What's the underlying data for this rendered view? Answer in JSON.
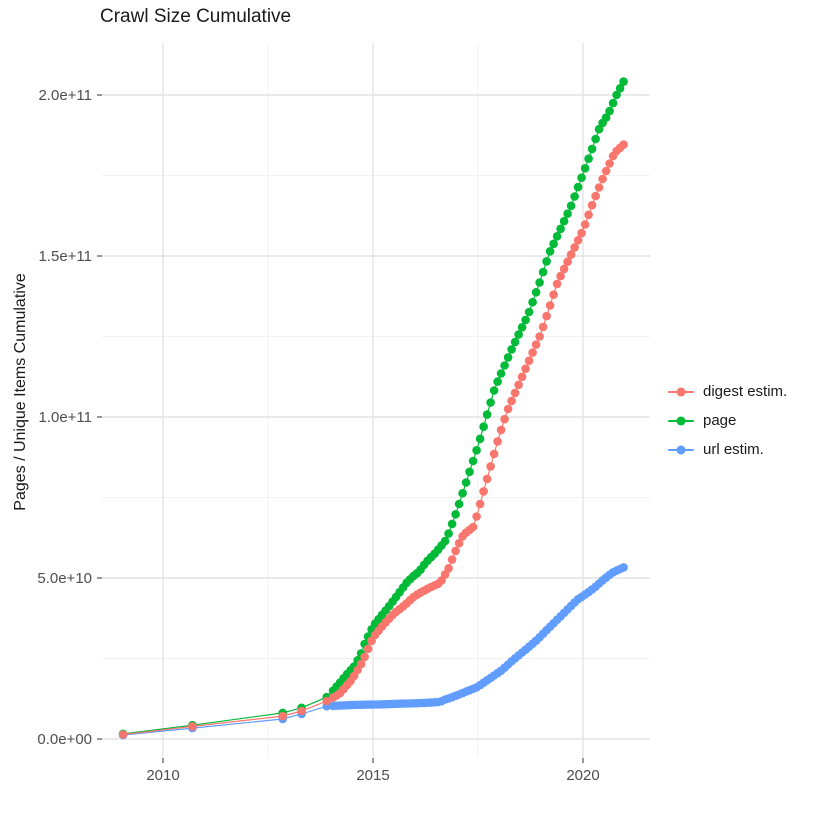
{
  "title": "Crawl Size Cumulative",
  "chart_data": {
    "type": "scatter",
    "subtype": "cumulative line + points",
    "title": "Crawl Size Cumulative",
    "xlabel": "",
    "ylabel": "Pages / Unique Items Cumulative",
    "x_tick_labels": [
      "2010",
      "2015",
      "2020"
    ],
    "x_tick_values": [
      2010,
      2015,
      2020
    ],
    "x_minor_tick_values": [
      2012.5,
      2017.5
    ],
    "y_tick_labels": [
      "0.0e+00",
      "5.0e+10",
      "1.0e+11",
      "1.5e+11",
      "2.0e+11"
    ],
    "y_tick_values_e9": [
      0,
      50,
      100,
      150,
      200
    ],
    "y_minor_values_e9": [
      25,
      75,
      125,
      175
    ],
    "xlim": [
      2008.45,
      2021.6
    ],
    "ylim_e9": [
      -10,
      216
    ],
    "value_unit": "items, stored as billions (1 = 1e9)",
    "grid": "major and minor, light gray on white",
    "legend_position": "right-center",
    "marker": "filled round point on thin line",
    "sparse_years": [
      2009.05,
      2010.7,
      2012.85,
      2013.3,
      2013.9
    ],
    "dense_range_years": [
      2014.05,
      2021.04
    ],
    "dense_step_years": 0.08333,
    "draw_order": [
      2,
      1,
      0
    ],
    "series": [
      {
        "name": "digest estim.",
        "color": "#F8766D",
        "anchors_year_value_e9": [
          [
            2009.05,
            1.4
          ],
          [
            2010.7,
            3.9
          ],
          [
            2012.85,
            7.1
          ],
          [
            2013.3,
            8.7
          ],
          [
            2013.9,
            11.8
          ],
          [
            2014.2,
            14
          ],
          [
            2014.5,
            18.5
          ],
          [
            2014.75,
            24
          ],
          [
            2015.0,
            31.5
          ],
          [
            2015.25,
            35.5
          ],
          [
            2015.5,
            39
          ],
          [
            2015.75,
            41.5
          ],
          [
            2016.0,
            44.5
          ],
          [
            2016.35,
            47
          ],
          [
            2016.6,
            48.5
          ],
          [
            2016.8,
            53
          ],
          [
            2017.0,
            59.5
          ],
          [
            2017.15,
            63.4
          ],
          [
            2017.4,
            66
          ],
          [
            2018.0,
            94
          ],
          [
            2018.2,
            102
          ],
          [
            2018.6,
            114
          ],
          [
            2019.0,
            126
          ],
          [
            2019.4,
            142
          ],
          [
            2019.7,
            150
          ],
          [
            2020.0,
            158
          ],
          [
            2020.25,
            167
          ],
          [
            2020.5,
            175
          ],
          [
            2020.75,
            182
          ],
          [
            2021.04,
            185.5
          ]
        ]
      },
      {
        "name": "page",
        "color": "#00BA38",
        "anchors_year_value_e9": [
          [
            2009.05,
            1.6
          ],
          [
            2010.7,
            4.3
          ],
          [
            2012.85,
            8.1
          ],
          [
            2013.3,
            9.7
          ],
          [
            2013.9,
            13
          ],
          [
            2014.05,
            15
          ],
          [
            2014.2,
            17.3
          ],
          [
            2014.4,
            20.4
          ],
          [
            2014.55,
            22.5
          ],
          [
            2014.7,
            26
          ],
          [
            2014.8,
            29.5
          ],
          [
            2015.0,
            35
          ],
          [
            2015.2,
            38.3
          ],
          [
            2015.4,
            41.5
          ],
          [
            2015.6,
            45
          ],
          [
            2015.8,
            48.5
          ],
          [
            2015.95,
            50.5
          ],
          [
            2016.1,
            52
          ],
          [
            2016.25,
            54.7
          ],
          [
            2016.5,
            58
          ],
          [
            2016.75,
            62
          ],
          [
            2017.0,
            71
          ],
          [
            2017.5,
            91
          ],
          [
            2017.9,
            109
          ],
          [
            2018.3,
            121
          ],
          [
            2018.7,
            132
          ],
          [
            2019.0,
            143
          ],
          [
            2019.2,
            151
          ],
          [
            2019.45,
            158
          ],
          [
            2019.7,
            165
          ],
          [
            2019.9,
            172
          ],
          [
            2020.1,
            179
          ],
          [
            2020.4,
            190
          ],
          [
            2020.6,
            194
          ],
          [
            2020.8,
            200
          ],
          [
            2021.04,
            206
          ]
        ]
      },
      {
        "name": "url estim.",
        "color": "#619CFF",
        "anchors_year_value_e9": [
          [
            2009.05,
            1.2
          ],
          [
            2010.7,
            3.4
          ],
          [
            2012.85,
            6.2
          ],
          [
            2013.3,
            7.8
          ],
          [
            2013.9,
            10.2
          ],
          [
            2014.2,
            10.4
          ],
          [
            2014.6,
            10.6
          ],
          [
            2015.0,
            10.7
          ],
          [
            2015.5,
            10.9
          ],
          [
            2016.0,
            11.1
          ],
          [
            2016.36,
            11.3
          ],
          [
            2016.6,
            11.5
          ],
          [
            2016.7,
            12.2
          ],
          [
            2016.83,
            12.7
          ],
          [
            2017.14,
            14.3
          ],
          [
            2017.48,
            16.1
          ],
          [
            2017.79,
            18.9
          ],
          [
            2018.07,
            21.4
          ],
          [
            2018.33,
            24.5
          ],
          [
            2018.62,
            27.6
          ],
          [
            2018.9,
            30.7
          ],
          [
            2019.14,
            33.9
          ],
          [
            2019.38,
            37
          ],
          [
            2019.62,
            40.1
          ],
          [
            2019.86,
            43.2
          ],
          [
            2020.1,
            45.3
          ],
          [
            2020.29,
            47.2
          ],
          [
            2020.48,
            49.4
          ],
          [
            2020.69,
            51.6
          ],
          [
            2020.93,
            53.1
          ],
          [
            2021.04,
            53.7
          ]
        ]
      }
    ],
    "colors": {
      "grid_major": "#E3E3E3",
      "grid_minor": "#F1F1F1",
      "tick_label": "#4D4D4D",
      "tick_mark": "#333333",
      "text": "#1A1A1A",
      "background": "#FFFFFF"
    }
  },
  "legend": {
    "entries": [
      {
        "label": "digest estim."
      },
      {
        "label": "page"
      },
      {
        "label": "url estim."
      }
    ]
  }
}
